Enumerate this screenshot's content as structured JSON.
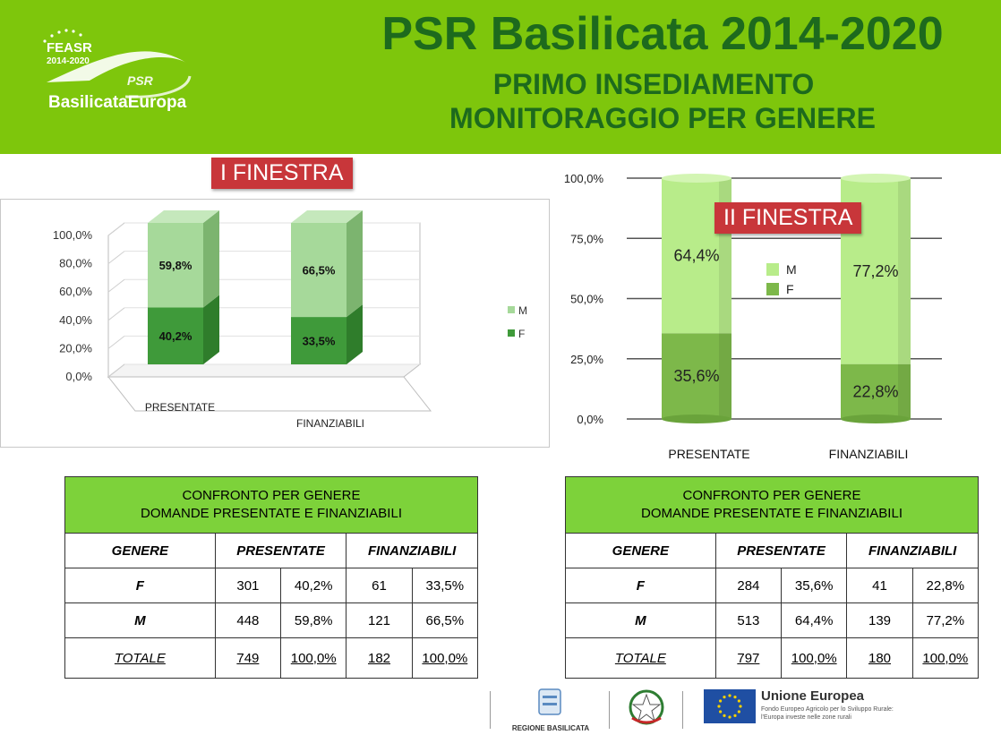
{
  "header": {
    "logo": {
      "feasr": "FEASR",
      "years": "2014-2020",
      "psr": "PSR",
      "brand": "BasilicataEuropa"
    },
    "title": "PSR Basilicata 2014-2020",
    "subtitle1": "PRIMO INSEDIAMENTO",
    "subtitle2": "MONITORAGGIO PER GENERE"
  },
  "chart_data": [
    {
      "type": "bar",
      "subtype": "stacked-3d",
      "label": "I FINESTRA",
      "categories": [
        "PRESENTATE",
        "FINANZIABILI"
      ],
      "series": [
        {
          "name": "F",
          "values": [
            40.2,
            33.5
          ],
          "labels": [
            "40,2%",
            "33,5%"
          ],
          "color": "#3f9a3a"
        },
        {
          "name": "M",
          "values": [
            59.8,
            66.5
          ],
          "labels": [
            "59,8%",
            "66,5%"
          ],
          "color": "#a6d99a"
        }
      ],
      "ylim": [
        0,
        100
      ],
      "yticks": [
        "0,0%",
        "20,0%",
        "40,0%",
        "60,0%",
        "80,0%",
        "100,0%"
      ],
      "legend": "right"
    },
    {
      "type": "bar",
      "subtype": "stacked-cylinder",
      "label": "II FINESTRA",
      "categories": [
        "PRESENTATE",
        "FINANZIABILI"
      ],
      "series": [
        {
          "name": "F",
          "values": [
            35.6,
            22.8
          ],
          "labels": [
            "35,6%",
            "22,8%"
          ],
          "color": "#7db84a"
        },
        {
          "name": "M",
          "values": [
            64.4,
            77.2
          ],
          "labels": [
            "64,4%",
            "77,2%"
          ],
          "color": "#b8ec8a"
        }
      ],
      "ylim": [
        0,
        100
      ],
      "yticks": [
        "0,0%",
        "25,0%",
        "50,0%",
        "75,0%",
        "100,0%"
      ],
      "legend": "center"
    }
  ],
  "tables": [
    {
      "title1": "CONFRONTO PER GENERE",
      "title2": "DOMANDE PRESENTATE E FINANZIABILI",
      "col_genere": "GENERE",
      "col_presentate": "PRESENTATE",
      "col_finanziabili": "FINANZIABILI",
      "rows": [
        {
          "g": "F",
          "p": "301",
          "pp": "40,2%",
          "f": "61",
          "fp": "33,5%"
        },
        {
          "g": "M",
          "p": "448",
          "pp": "59,8%",
          "f": "121",
          "fp": "66,5%"
        },
        {
          "g": "TOTALE",
          "p": "749",
          "pp": "100,0%",
          "f": "182",
          "fp": "100,0%"
        }
      ]
    },
    {
      "title1": "CONFRONTO PER GENERE",
      "title2": "DOMANDE PRESENTATE E FINANZIABILI",
      "col_genere": "GENERE",
      "col_presentate": "PRESENTATE",
      "col_finanziabili": "FINANZIABILI",
      "rows": [
        {
          "g": "F",
          "p": "284",
          "pp": "35,6%",
          "f": "41",
          "fp": "22,8%"
        },
        {
          "g": "M",
          "p": "513",
          "pp": "64,4%",
          "f": "139",
          "fp": "77,2%"
        },
        {
          "g": "TOTALE",
          "p": "797",
          "pp": "100,0%",
          "f": "180",
          "fp": "100,0%"
        }
      ]
    }
  ],
  "footer": {
    "regione": "REGIONE BASILICATA",
    "ue_title": "Unione Europea",
    "ue_line1": "Fondo Europeo Agricolo per lo Sviluppo Rurale:",
    "ue_line2": "l'Europa investe nelle zone rurali"
  }
}
